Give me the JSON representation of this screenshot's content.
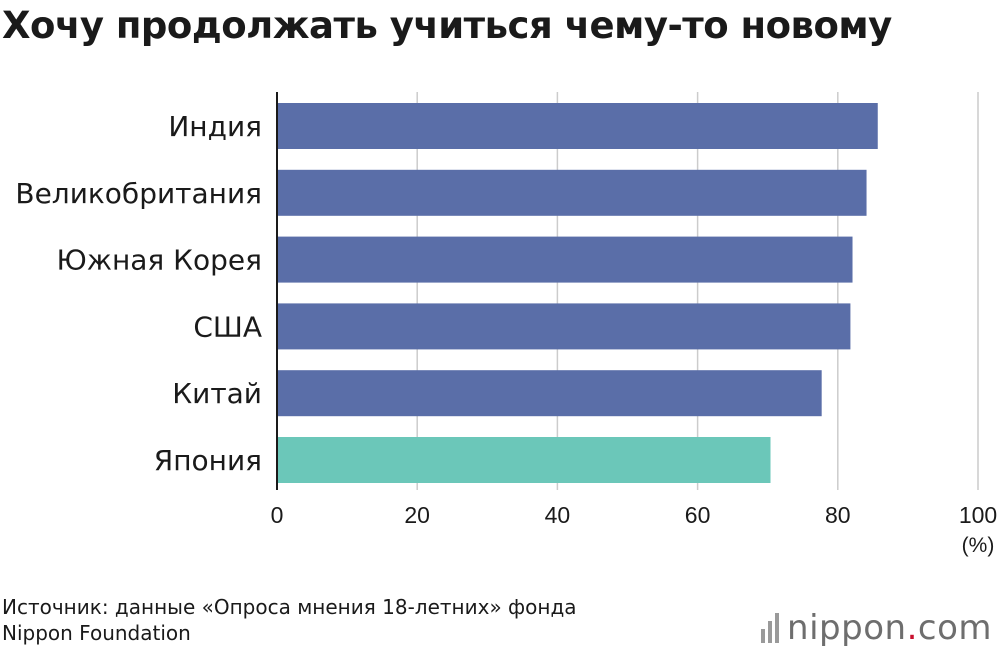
{
  "title": "Хочу продолжать учиться чему-то новому",
  "source_lines": [
    "Источник: данные «Опроса мнения 18-летних» фонда",
    "Nippon Foundation"
  ],
  "brand": {
    "name": "nippon",
    "dot": ".",
    "suffix": "com"
  },
  "colors": {
    "default_bar": "#5a6ea8",
    "highlight_bar": "#6bc7b9",
    "grid": "#cccccc"
  },
  "chart_data": {
    "type": "bar",
    "orientation": "horizontal",
    "categories": [
      "Индия",
      "Великобритания",
      "Южная Корея",
      "США",
      "Китай",
      "Япония"
    ],
    "values": [
      85.7,
      84.1,
      82.1,
      81.8,
      77.7,
      70.4
    ],
    "highlight": [
      "Япония"
    ],
    "xlim": [
      0,
      100
    ],
    "xticks": [
      0,
      20,
      40,
      60,
      80,
      100
    ],
    "unit": "(%)",
    "grid": true
  }
}
